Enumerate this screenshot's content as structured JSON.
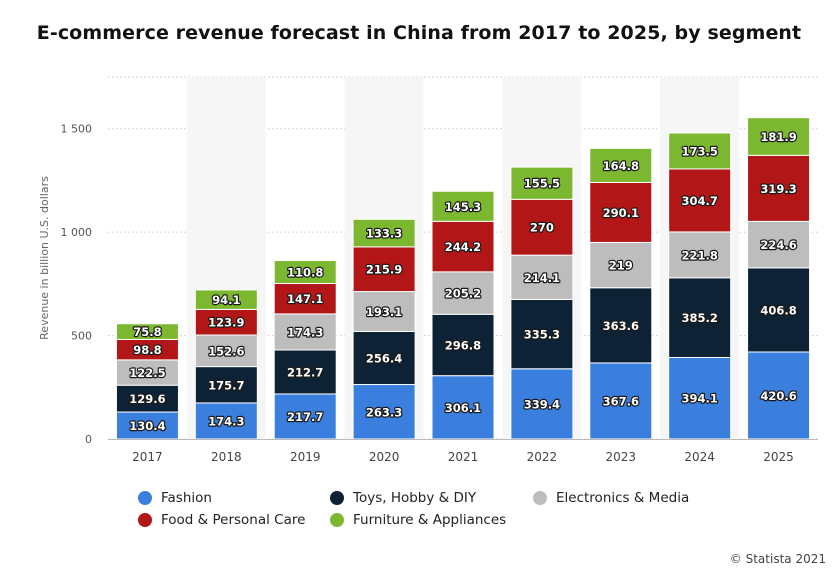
{
  "chart_data": {
    "type": "bar",
    "stacked": true,
    "title": "E-commerce revenue forecast in China from 2017 to 2025, by segment",
    "ylabel": "Revenue in billion U.S. dollars",
    "xlabel": "",
    "ylim": [
      0,
      1750
    ],
    "yticks": [
      0,
      500,
      1000,
      1500
    ],
    "ytick_labels": [
      "0",
      "500",
      "1 000",
      "1 500"
    ],
    "grid": true,
    "legend_position": "bottom",
    "categories": [
      "2017",
      "2018",
      "2019",
      "2020",
      "2021",
      "2022",
      "2023",
      "2024",
      "2025"
    ],
    "series": [
      {
        "name": "Fashion",
        "color": "#3a7fde",
        "values": [
          130.4,
          174.3,
          217.7,
          263.3,
          306.1,
          339.4,
          367.6,
          394.1,
          420.6
        ],
        "labels": [
          "130.4",
          "174.3",
          "217.7",
          "263.3",
          "306.1",
          "339.4",
          "367.6",
          "394.1",
          "420.6"
        ]
      },
      {
        "name": "Toys, Hobby & DIY",
        "color": "#0e2236",
        "values": [
          129.6,
          175.7,
          212.7,
          256.4,
          296.8,
          335.3,
          363.6,
          385.2,
          406.8
        ],
        "labels": [
          "129.6",
          "175.7",
          "212.7",
          "256.4",
          "296.8",
          "335.3",
          "363.6",
          "385.2",
          "406.8"
        ]
      },
      {
        "name": "Electronics & Media",
        "color": "#bdbdbd",
        "values": [
          122.5,
          152.6,
          174.3,
          193.1,
          205.2,
          214.1,
          219,
          221.8,
          224.6
        ],
        "labels": [
          "122.5",
          "152.6",
          "174.3",
          "193.1",
          "205.2",
          "214.1",
          "219",
          "221.8",
          "224.6"
        ]
      },
      {
        "name": "Food & Personal Care",
        "color": "#b21616",
        "values": [
          98.8,
          123.9,
          147.1,
          215.9,
          244.2,
          270,
          290.1,
          304.7,
          319.3
        ],
        "labels": [
          "98.8",
          "123.9",
          "147.1",
          "215.9",
          "244.2",
          "270",
          "290.1",
          "304.7",
          "319.3"
        ]
      },
      {
        "name": "Furniture & Appliances",
        "color": "#7cb82f",
        "values": [
          75.8,
          94.1,
          110.8,
          133.3,
          145.3,
          155.5,
          164.8,
          173.5,
          181.9
        ],
        "labels": [
          "75.8",
          "94.1",
          "110.8",
          "133.3",
          "145.3",
          "155.5",
          "164.8",
          "173.5",
          "181.9"
        ]
      }
    ]
  },
  "copyright": "© Statista 2021"
}
